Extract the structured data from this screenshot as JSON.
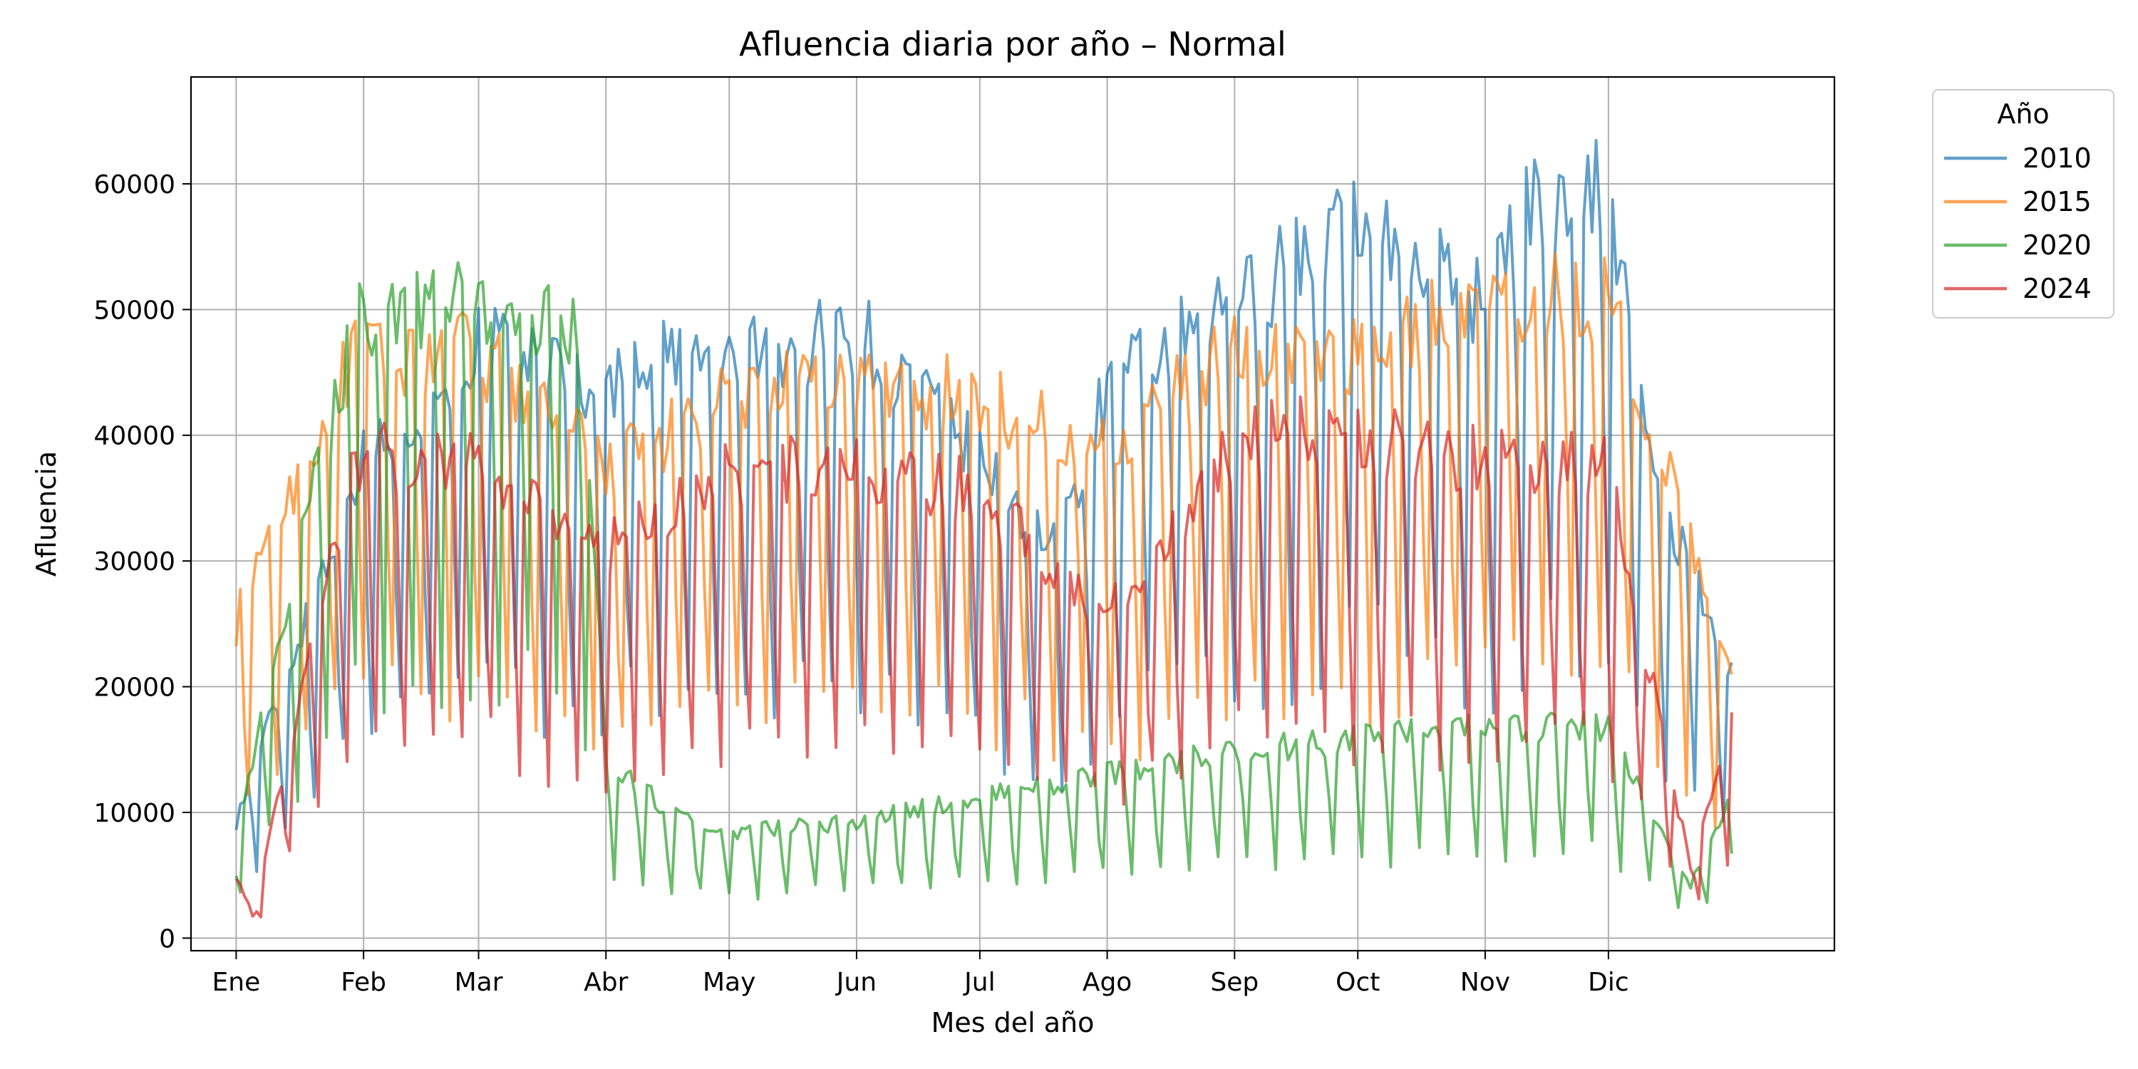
{
  "chart_data": {
    "type": "line",
    "title": "Afluencia diaria por año – Normal",
    "xlabel": "Mes del año",
    "ylabel": "Afluencia",
    "xlim": [
      -10,
      390
    ],
    "ylim": [
      -1000,
      68500
    ],
    "grid": true,
    "legend": {
      "title": "Año",
      "placement": "outside-top-right"
    },
    "x_ticks": [
      {
        "value": 1,
        "label": "Ene"
      },
      {
        "value": 32,
        "label": "Feb"
      },
      {
        "value": 60,
        "label": "Mar"
      },
      {
        "value": 91,
        "label": "Abr"
      },
      {
        "value": 121,
        "label": "May"
      },
      {
        "value": 152,
        "label": "Jun"
      },
      {
        "value": 182,
        "label": "Jul"
      },
      {
        "value": 213,
        "label": "Ago"
      },
      {
        "value": 244,
        "label": "Sep"
      },
      {
        "value": 274,
        "label": "Oct"
      },
      {
        "value": 305,
        "label": "Nov"
      },
      {
        "value": 335,
        "label": "Dic"
      }
    ],
    "y_ticks": [
      0,
      10000,
      20000,
      30000,
      40000,
      50000,
      60000
    ],
    "series": [
      {
        "name": "2010",
        "color": "#1f77b4",
        "segments": [
          {
            "x_start": 1,
            "x_end": 365,
            "period": 7,
            "base_high": 42000,
            "base_low": 15000
          }
        ],
        "x": [
          1,
          30,
          60,
          91,
          98,
          121,
          152,
          182,
          200,
          213,
          244,
          274,
          305,
          317,
          335,
          345,
          365
        ],
        "y": [
          10000,
          40000,
          51000,
          47000,
          50000,
          49000,
          52000,
          41000,
          33000,
          47000,
          54000,
          62000,
          54000,
          63000,
          64500,
          40000,
          22000
        ]
      },
      {
        "name": "2015",
        "color": "#ff7f0e",
        "x": [
          1,
          30,
          60,
          91,
          121,
          152,
          182,
          213,
          244,
          274,
          305,
          335,
          365
        ],
        "y": [
          27000,
          50000,
          50000,
          40000,
          46000,
          48000,
          46000,
          42000,
          50000,
          50000,
          54500,
          55000,
          22500
        ]
      },
      {
        "name": "2020",
        "color": "#2ca02c",
        "x": [
          1,
          30,
          60,
          85,
          91,
          110,
          121,
          152,
          182,
          213,
          244,
          274,
          305,
          335,
          355,
          365
        ],
        "y": [
          9000,
          53500,
          54000,
          53000,
          15000,
          10000,
          9000,
          10000,
          12000,
          14000,
          16000,
          17000,
          18000,
          18000,
          4500,
          12000
        ]
      },
      {
        "name": "2024",
        "color": "#d62728",
        "x": [
          1,
          5,
          30,
          60,
          91,
          121,
          152,
          182,
          213,
          244,
          260,
          274,
          305,
          335,
          355,
          365
        ],
        "y": [
          5500,
          2000,
          41000,
          41000,
          33000,
          40000,
          40000,
          38000,
          27500,
          42000,
          44000,
          42500,
          41000,
          40000,
          6000,
          19000
        ]
      }
    ]
  }
}
